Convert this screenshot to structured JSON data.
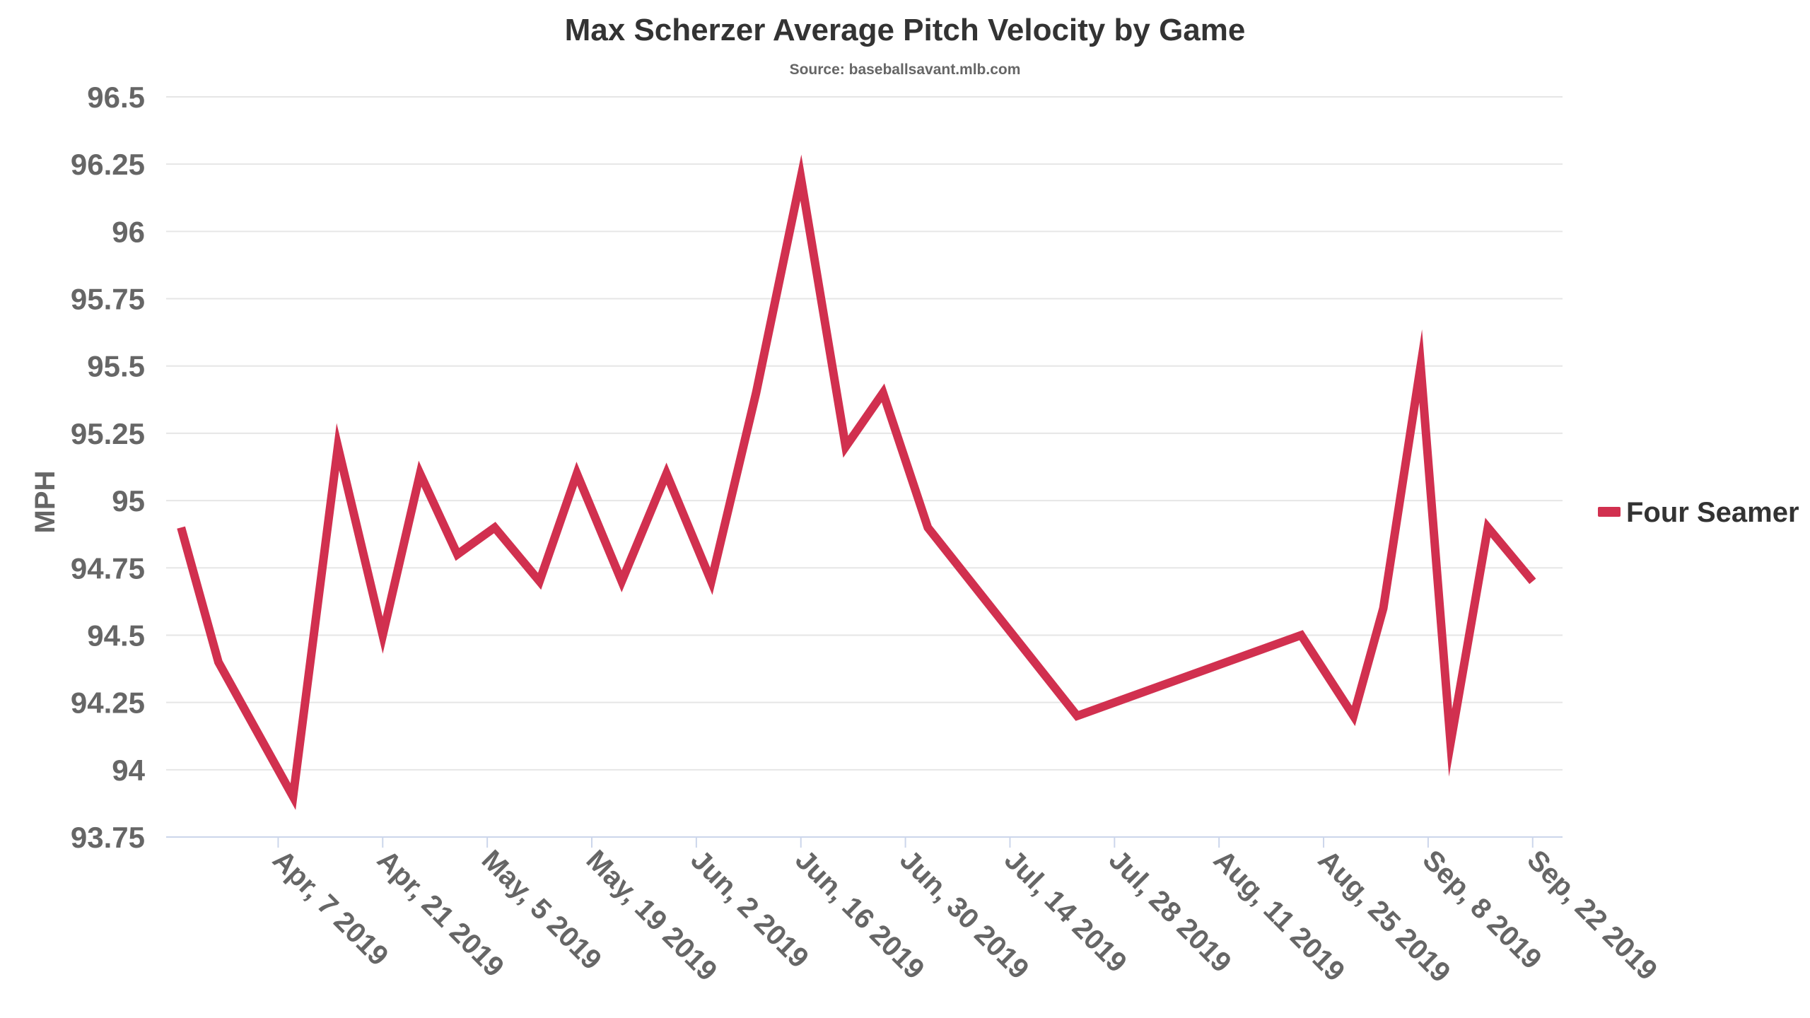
{
  "chart_data": {
    "type": "line",
    "title": "Max Scherzer Average Pitch Velocity by Game",
    "subtitle": "Source: baseballsavant.mlb.com",
    "ylabel": "MPH",
    "xlabel": "",
    "ylim": [
      93.75,
      96.5
    ],
    "yticks": [
      "93.75",
      "94",
      "94.25",
      "94.5",
      "94.75",
      "95",
      "95.25",
      "95.5",
      "95.75",
      "96",
      "96.25",
      "96.5"
    ],
    "xlim": [
      "2019-03-23",
      "2019-09-26"
    ],
    "xticks": [
      {
        "date": "2019-04-07",
        "label": "Apr, 7 2019"
      },
      {
        "date": "2019-04-21",
        "label": "Apr, 21 2019"
      },
      {
        "date": "2019-05-05",
        "label": "May, 5 2019"
      },
      {
        "date": "2019-05-19",
        "label": "May, 19 2019"
      },
      {
        "date": "2019-06-02",
        "label": "Jun, 2 2019"
      },
      {
        "date": "2019-06-16",
        "label": "Jun, 16 2019"
      },
      {
        "date": "2019-06-30",
        "label": "Jun, 30 2019"
      },
      {
        "date": "2019-07-14",
        "label": "Jul, 14 2019"
      },
      {
        "date": "2019-07-28",
        "label": "Jul, 28 2019"
      },
      {
        "date": "2019-08-11",
        "label": "Aug, 11 2019"
      },
      {
        "date": "2019-08-25",
        "label": "Aug, 25 2019"
      },
      {
        "date": "2019-09-08",
        "label": "Sep, 8 2019"
      },
      {
        "date": "2019-09-22",
        "label": "Sep, 22 2019"
      }
    ],
    "grid": true,
    "legend_position": "right",
    "series": [
      {
        "name": "Four Seamer",
        "color": "#d1304f",
        "points": [
          {
            "x": "2019-03-25",
            "y": 94.9
          },
          {
            "x": "2019-03-30",
            "y": 94.4
          },
          {
            "x": "2019-04-09",
            "y": 93.9
          },
          {
            "x": "2019-04-15",
            "y": 95.2
          },
          {
            "x": "2019-04-21",
            "y": 94.5
          },
          {
            "x": "2019-04-26",
            "y": 95.1
          },
          {
            "x": "2019-05-01",
            "y": 94.8
          },
          {
            "x": "2019-05-06",
            "y": 94.9
          },
          {
            "x": "2019-05-12",
            "y": 94.7
          },
          {
            "x": "2019-05-17",
            "y": 95.1
          },
          {
            "x": "2019-05-23",
            "y": 94.7
          },
          {
            "x": "2019-05-29",
            "y": 95.1
          },
          {
            "x": "2019-06-04",
            "y": 94.7
          },
          {
            "x": "2019-06-10",
            "y": 95.4
          },
          {
            "x": "2019-06-16",
            "y": 96.2
          },
          {
            "x": "2019-06-22",
            "y": 95.2
          },
          {
            "x": "2019-06-27",
            "y": 95.4
          },
          {
            "x": "2019-07-03",
            "y": 94.9
          },
          {
            "x": "2019-07-23",
            "y": 94.2
          },
          {
            "x": "2019-08-22",
            "y": 94.5
          },
          {
            "x": "2019-08-29",
            "y": 94.2
          },
          {
            "x": "2019-09-02",
            "y": 94.6
          },
          {
            "x": "2019-09-07",
            "y": 95.5
          },
          {
            "x": "2019-09-11",
            "y": 94.1
          },
          {
            "x": "2019-09-16",
            "y": 94.9
          },
          {
            "x": "2019-09-22",
            "y": 94.7
          }
        ]
      }
    ]
  }
}
